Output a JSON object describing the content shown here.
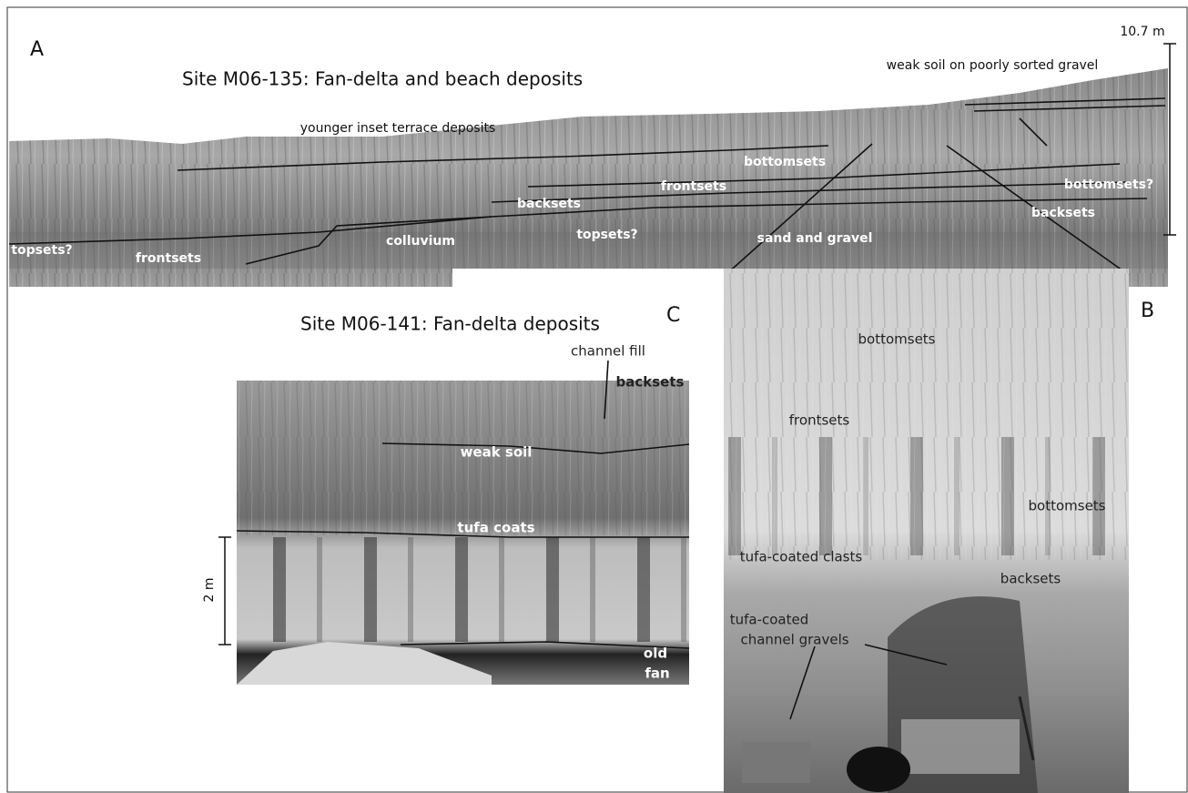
{
  "panel_a": {
    "letter": "A",
    "title": "Site M06-135: Fan-delta and beach deposits",
    "scale_label": "10.7 m",
    "labels": [
      "weak soil on poorly sorted gravel",
      "younger inset terrace deposits",
      "bottomsets",
      "frontsets",
      "backsets",
      "bottomsets?",
      "backsets",
      "topsets?",
      "topsets?",
      "frontsets",
      "colluvium",
      "sand and gravel"
    ]
  },
  "panel_b": {
    "letter": "B",
    "labels": [
      "bottomsets",
      "frontsets",
      "bottomsets",
      "tufa-coated clasts",
      "backsets",
      "tufa-coated",
      "channel gravels"
    ]
  },
  "panel_c": {
    "letter": "C",
    "title": "Site M06-141: Fan-delta deposits",
    "scale_label": "2 m",
    "labels": [
      "channel fill",
      "backsets",
      "weak soil",
      "tufa coats",
      "old",
      "fan"
    ]
  }
}
